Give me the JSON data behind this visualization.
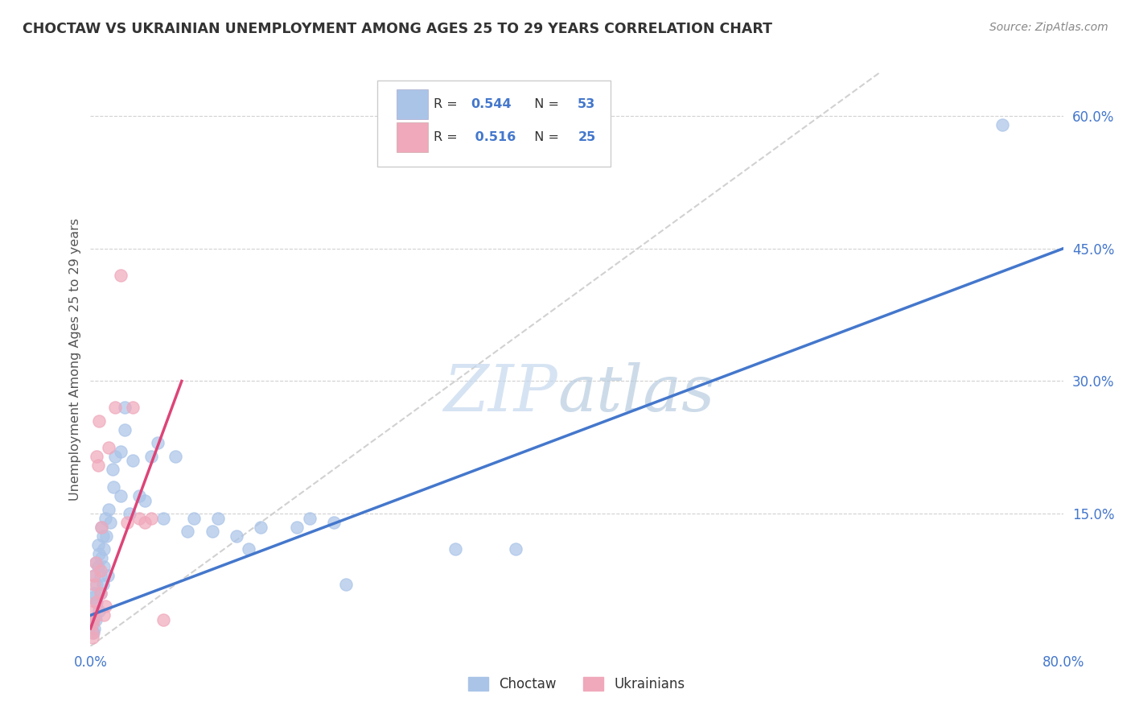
{
  "title": "CHOCTAW VS UKRAINIAN UNEMPLOYMENT AMONG AGES 25 TO 29 YEARS CORRELATION CHART",
  "source": "Source: ZipAtlas.com",
  "ylabel": "Unemployment Among Ages 25 to 29 years",
  "ytick_labels": [
    "15.0%",
    "30.0%",
    "45.0%",
    "60.0%"
  ],
  "ytick_values": [
    15,
    30,
    45,
    60
  ],
  "xlim": [
    0,
    80
  ],
  "ylim": [
    0,
    65
  ],
  "choctaw_color": "#aac4e8",
  "ukrainian_color": "#f0a8bb",
  "choctaw_line_color": "#4477cc",
  "ukrainian_line_color": "#dd4477",
  "choctaw_scatter": [
    [
      0.2,
      5.5
    ],
    [
      0.3,
      8
    ],
    [
      0.2,
      3
    ],
    [
      0.3,
      2
    ],
    [
      0.2,
      1.5
    ],
    [
      0.3,
      6
    ],
    [
      0.4,
      9.5
    ],
    [
      0.5,
      7
    ],
    [
      0.6,
      11.5
    ],
    [
      0.5,
      5
    ],
    [
      0.4,
      3
    ],
    [
      0.6,
      9
    ],
    [
      0.7,
      10.5
    ],
    [
      0.9,
      13.5
    ],
    [
      0.8,
      8
    ],
    [
      1.0,
      12.5
    ],
    [
      0.9,
      10
    ],
    [
      0.8,
      6
    ],
    [
      0.7,
      4
    ],
    [
      1.2,
      14.5
    ],
    [
      1.1,
      11
    ],
    [
      1.1,
      9
    ],
    [
      1.3,
      12.5
    ],
    [
      1.0,
      7
    ],
    [
      1.5,
      15.5
    ],
    [
      1.8,
      20
    ],
    [
      1.6,
      14
    ],
    [
      1.4,
      8
    ],
    [
      2.0,
      21.5
    ],
    [
      1.9,
      18
    ],
    [
      2.5,
      22
    ],
    [
      2.5,
      17
    ],
    [
      2.8,
      24.5
    ],
    [
      2.8,
      27
    ],
    [
      3.2,
      15
    ],
    [
      3.5,
      21
    ],
    [
      4.0,
      17
    ],
    [
      4.5,
      16.5
    ],
    [
      5.0,
      21.5
    ],
    [
      5.5,
      23
    ],
    [
      6.0,
      14.5
    ],
    [
      7.0,
      21.5
    ],
    [
      8.0,
      13
    ],
    [
      8.5,
      14.5
    ],
    [
      10.0,
      13
    ],
    [
      10.5,
      14.5
    ],
    [
      12.0,
      12.5
    ],
    [
      13.0,
      11
    ],
    [
      14.0,
      13.5
    ],
    [
      17.0,
      13.5
    ],
    [
      18.0,
      14.5
    ],
    [
      20.0,
      14
    ],
    [
      21.0,
      7
    ],
    [
      30.0,
      11
    ],
    [
      35.0,
      11
    ],
    [
      75.0,
      59
    ]
  ],
  "ukrainian_scatter": [
    [
      0.2,
      4
    ],
    [
      0.2,
      3
    ],
    [
      0.15,
      2.5
    ],
    [
      0.15,
      1.5
    ],
    [
      0.15,
      1
    ],
    [
      0.3,
      7
    ],
    [
      0.3,
      8
    ],
    [
      0.4,
      9.5
    ],
    [
      0.4,
      5
    ],
    [
      0.5,
      21.5
    ],
    [
      0.6,
      20.5
    ],
    [
      0.7,
      25.5
    ],
    [
      0.8,
      6
    ],
    [
      0.8,
      8.5
    ],
    [
      0.9,
      13.5
    ],
    [
      1.2,
      4.5
    ],
    [
      1.1,
      3.5
    ],
    [
      1.5,
      22.5
    ],
    [
      2.0,
      27
    ],
    [
      2.5,
      42
    ],
    [
      3.0,
      14
    ],
    [
      3.5,
      27
    ],
    [
      4.0,
      14.5
    ],
    [
      4.5,
      14
    ],
    [
      5.0,
      14.5
    ],
    [
      6.0,
      3
    ]
  ],
  "choctaw_line_x": [
    0,
    80
  ],
  "choctaw_line_y": [
    3.5,
    45.0
  ],
  "ukrainian_line_x": [
    0,
    7.5
  ],
  "ukrainian_line_y": [
    2.0,
    30.0
  ],
  "diagonal_line_x": [
    0,
    65
  ],
  "diagonal_line_y": [
    0,
    65
  ],
  "watermark_zip": "ZIP",
  "watermark_atlas": "atlas",
  "title_color": "#333333",
  "source_color": "#888888",
  "axis_color": "#4477cc",
  "grid_color": "#cccccc",
  "background_color": "#ffffff"
}
